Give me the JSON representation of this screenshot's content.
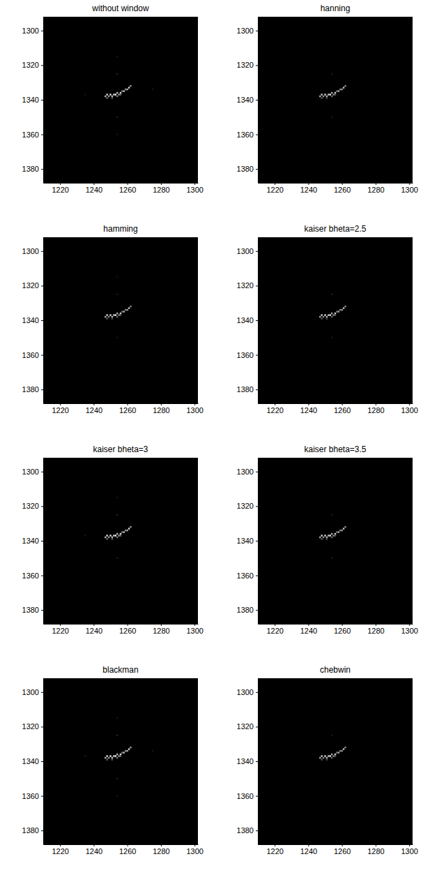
{
  "chart_data": [
    {
      "type": "image",
      "title": "without window",
      "xlim": [
        1210,
        1302
      ],
      "ylim": [
        1388,
        1292
      ],
      "xticks": [
        1220,
        1240,
        1260,
        1280,
        1300
      ],
      "yticks": [
        1300,
        1320,
        1340,
        1360,
        1380
      ],
      "cells": [
        [
          1247,
          1338,
          0.7
        ],
        [
          1248,
          1337,
          0.85
        ],
        [
          1249,
          1338,
          0.6
        ],
        [
          1250,
          1337,
          0.9
        ],
        [
          1251,
          1338,
          0.75
        ],
        [
          1252,
          1337,
          0.8
        ],
        [
          1253,
          1337,
          0.95
        ],
        [
          1254,
          1336,
          0.7
        ],
        [
          1255,
          1337,
          0.6
        ],
        [
          1256,
          1336,
          0.85
        ],
        [
          1257,
          1335,
          0.5
        ],
        [
          1258,
          1335,
          0.7
        ],
        [
          1259,
          1334,
          0.55
        ],
        [
          1260,
          1334,
          0.65
        ],
        [
          1261,
          1333,
          0.8
        ],
        [
          1262,
          1332,
          0.6
        ],
        [
          1248,
          1339,
          0.4
        ],
        [
          1251,
          1339,
          0.35
        ],
        [
          1254,
          1338,
          0.45
        ],
        [
          1256,
          1337,
          0.4
        ],
        [
          1254,
          1325,
          0.12
        ],
        [
          1254,
          1315,
          0.08
        ],
        [
          1254,
          1350,
          0.1
        ],
        [
          1254,
          1360,
          0.07
        ],
        [
          1235,
          1337,
          0.08
        ],
        [
          1275,
          1334,
          0.08
        ]
      ]
    },
    {
      "type": "image",
      "title": "hanning",
      "xlim": [
        1210,
        1302
      ],
      "ylim": [
        1388,
        1292
      ],
      "xticks": [
        1220,
        1240,
        1260,
        1280,
        1300
      ],
      "yticks": [
        1300,
        1320,
        1340,
        1360,
        1380
      ],
      "cells": [
        [
          1247,
          1338,
          0.65
        ],
        [
          1248,
          1337,
          0.8
        ],
        [
          1249,
          1338,
          0.55
        ],
        [
          1250,
          1337,
          0.85
        ],
        [
          1251,
          1338,
          0.7
        ],
        [
          1252,
          1337,
          0.75
        ],
        [
          1253,
          1337,
          0.9
        ],
        [
          1254,
          1336,
          0.65
        ],
        [
          1255,
          1337,
          0.55
        ],
        [
          1256,
          1336,
          0.8
        ],
        [
          1257,
          1335,
          0.45
        ],
        [
          1258,
          1335,
          0.65
        ],
        [
          1259,
          1334,
          0.5
        ],
        [
          1260,
          1334,
          0.6
        ],
        [
          1261,
          1333,
          0.75
        ],
        [
          1262,
          1332,
          0.55
        ],
        [
          1248,
          1339,
          0.35
        ],
        [
          1251,
          1339,
          0.3
        ],
        [
          1254,
          1338,
          0.4
        ],
        [
          1256,
          1337,
          0.35
        ],
        [
          1254,
          1325,
          0.08
        ],
        [
          1254,
          1350,
          0.07
        ]
      ]
    },
    {
      "type": "image",
      "title": "hamming",
      "xlim": [
        1210,
        1302
      ],
      "ylim": [
        1388,
        1292
      ],
      "xticks": [
        1220,
        1240,
        1260,
        1280,
        1300
      ],
      "yticks": [
        1300,
        1320,
        1340,
        1360,
        1380
      ],
      "cells": [
        [
          1247,
          1338,
          0.65
        ],
        [
          1248,
          1337,
          0.8
        ],
        [
          1249,
          1338,
          0.55
        ],
        [
          1250,
          1337,
          0.85
        ],
        [
          1251,
          1338,
          0.7
        ],
        [
          1252,
          1337,
          0.75
        ],
        [
          1253,
          1337,
          0.9
        ],
        [
          1254,
          1336,
          0.65
        ],
        [
          1255,
          1337,
          0.55
        ],
        [
          1256,
          1336,
          0.8
        ],
        [
          1257,
          1335,
          0.45
        ],
        [
          1258,
          1335,
          0.65
        ],
        [
          1259,
          1334,
          0.5
        ],
        [
          1260,
          1334,
          0.6
        ],
        [
          1261,
          1333,
          0.75
        ],
        [
          1262,
          1332,
          0.55
        ],
        [
          1248,
          1339,
          0.35
        ],
        [
          1251,
          1339,
          0.3
        ],
        [
          1254,
          1338,
          0.4
        ],
        [
          1256,
          1337,
          0.35
        ],
        [
          1254,
          1325,
          0.1
        ],
        [
          1254,
          1350,
          0.08
        ],
        [
          1254,
          1315,
          0.06
        ]
      ]
    },
    {
      "type": "image",
      "title": "kaiser bheta=2.5",
      "xlim": [
        1210,
        1302
      ],
      "ylim": [
        1388,
        1292
      ],
      "xticks": [
        1220,
        1240,
        1260,
        1280,
        1300
      ],
      "yticks": [
        1300,
        1320,
        1340,
        1360,
        1380
      ],
      "cells": [
        [
          1247,
          1338,
          0.65
        ],
        [
          1248,
          1337,
          0.8
        ],
        [
          1249,
          1338,
          0.55
        ],
        [
          1250,
          1337,
          0.85
        ],
        [
          1251,
          1338,
          0.7
        ],
        [
          1252,
          1337,
          0.75
        ],
        [
          1253,
          1337,
          0.9
        ],
        [
          1254,
          1336,
          0.65
        ],
        [
          1255,
          1337,
          0.55
        ],
        [
          1256,
          1336,
          0.8
        ],
        [
          1257,
          1335,
          0.45
        ],
        [
          1258,
          1335,
          0.65
        ],
        [
          1259,
          1334,
          0.5
        ],
        [
          1260,
          1334,
          0.6
        ],
        [
          1261,
          1333,
          0.75
        ],
        [
          1262,
          1332,
          0.55
        ],
        [
          1248,
          1339,
          0.35
        ],
        [
          1251,
          1339,
          0.3
        ],
        [
          1254,
          1338,
          0.4
        ],
        [
          1256,
          1337,
          0.35
        ],
        [
          1254,
          1325,
          0.1
        ],
        [
          1254,
          1350,
          0.08
        ]
      ]
    },
    {
      "type": "image",
      "title": "kaiser bheta=3",
      "xlim": [
        1210,
        1302
      ],
      "ylim": [
        1388,
        1292
      ],
      "xticks": [
        1220,
        1240,
        1260,
        1280,
        1300
      ],
      "yticks": [
        1300,
        1320,
        1340,
        1360,
        1380
      ],
      "cells": [
        [
          1247,
          1338,
          0.7
        ],
        [
          1248,
          1337,
          0.85
        ],
        [
          1249,
          1338,
          0.6
        ],
        [
          1250,
          1337,
          0.9
        ],
        [
          1251,
          1338,
          0.75
        ],
        [
          1252,
          1337,
          0.8
        ],
        [
          1253,
          1337,
          0.95
        ],
        [
          1254,
          1336,
          0.7
        ],
        [
          1255,
          1337,
          0.6
        ],
        [
          1256,
          1336,
          0.85
        ],
        [
          1257,
          1335,
          0.5
        ],
        [
          1258,
          1335,
          0.7
        ],
        [
          1259,
          1334,
          0.55
        ],
        [
          1260,
          1334,
          0.65
        ],
        [
          1261,
          1333,
          0.8
        ],
        [
          1262,
          1332,
          0.6
        ],
        [
          1248,
          1339,
          0.4
        ],
        [
          1251,
          1339,
          0.35
        ],
        [
          1254,
          1338,
          0.45
        ],
        [
          1256,
          1337,
          0.4
        ],
        [
          1254,
          1325,
          0.12
        ],
        [
          1254,
          1315,
          0.08
        ],
        [
          1254,
          1350,
          0.1
        ],
        [
          1235,
          1337,
          0.08
        ]
      ]
    },
    {
      "type": "image",
      "title": "kaiser bheta=3.5",
      "xlim": [
        1210,
        1302
      ],
      "ylim": [
        1388,
        1292
      ],
      "xticks": [
        1220,
        1240,
        1260,
        1280,
        1300
      ],
      "yticks": [
        1300,
        1320,
        1340,
        1360,
        1380
      ],
      "cells": [
        [
          1247,
          1338,
          0.65
        ],
        [
          1248,
          1337,
          0.8
        ],
        [
          1249,
          1338,
          0.55
        ],
        [
          1250,
          1337,
          0.85
        ],
        [
          1251,
          1338,
          0.7
        ],
        [
          1252,
          1337,
          0.75
        ],
        [
          1253,
          1337,
          0.9
        ],
        [
          1254,
          1336,
          0.65
        ],
        [
          1255,
          1337,
          0.55
        ],
        [
          1256,
          1336,
          0.8
        ],
        [
          1257,
          1335,
          0.45
        ],
        [
          1258,
          1335,
          0.65
        ],
        [
          1259,
          1334,
          0.5
        ],
        [
          1260,
          1334,
          0.6
        ],
        [
          1261,
          1333,
          0.75
        ],
        [
          1262,
          1332,
          0.55
        ],
        [
          1248,
          1339,
          0.35
        ],
        [
          1251,
          1339,
          0.3
        ],
        [
          1254,
          1338,
          0.4
        ],
        [
          1256,
          1337,
          0.35
        ],
        [
          1254,
          1325,
          0.1
        ],
        [
          1254,
          1350,
          0.08
        ]
      ]
    },
    {
      "type": "image",
      "title": "blackman",
      "xlim": [
        1210,
        1302
      ],
      "ylim": [
        1388,
        1292
      ],
      "xticks": [
        1220,
        1240,
        1260,
        1280,
        1300
      ],
      "yticks": [
        1300,
        1320,
        1340,
        1360,
        1380
      ],
      "cells": [
        [
          1247,
          1338,
          0.7
        ],
        [
          1248,
          1337,
          0.85
        ],
        [
          1249,
          1338,
          0.6
        ],
        [
          1250,
          1337,
          0.9
        ],
        [
          1251,
          1338,
          0.75
        ],
        [
          1252,
          1337,
          0.8
        ],
        [
          1253,
          1337,
          0.95
        ],
        [
          1254,
          1336,
          0.7
        ],
        [
          1255,
          1337,
          0.6
        ],
        [
          1256,
          1336,
          0.85
        ],
        [
          1257,
          1335,
          0.5
        ],
        [
          1258,
          1335,
          0.7
        ],
        [
          1259,
          1334,
          0.55
        ],
        [
          1260,
          1334,
          0.65
        ],
        [
          1261,
          1333,
          0.8
        ],
        [
          1262,
          1332,
          0.6
        ],
        [
          1248,
          1339,
          0.4
        ],
        [
          1251,
          1339,
          0.35
        ],
        [
          1254,
          1338,
          0.45
        ],
        [
          1256,
          1337,
          0.4
        ],
        [
          1254,
          1325,
          0.12
        ],
        [
          1254,
          1315,
          0.09
        ],
        [
          1254,
          1350,
          0.1
        ],
        [
          1254,
          1360,
          0.07
        ],
        [
          1235,
          1337,
          0.09
        ],
        [
          1275,
          1334,
          0.08
        ]
      ]
    },
    {
      "type": "image",
      "title": "chebwin",
      "xlim": [
        1210,
        1302
      ],
      "ylim": [
        1388,
        1292
      ],
      "xticks": [
        1220,
        1240,
        1260,
        1280,
        1300
      ],
      "yticks": [
        1300,
        1320,
        1340,
        1360,
        1380
      ],
      "cells": [
        [
          1247,
          1338,
          0.65
        ],
        [
          1248,
          1337,
          0.8
        ],
        [
          1249,
          1338,
          0.55
        ],
        [
          1250,
          1337,
          0.85
        ],
        [
          1251,
          1338,
          0.7
        ],
        [
          1252,
          1337,
          0.75
        ],
        [
          1253,
          1337,
          0.9
        ],
        [
          1254,
          1336,
          0.65
        ],
        [
          1255,
          1337,
          0.55
        ],
        [
          1256,
          1336,
          0.8
        ],
        [
          1257,
          1335,
          0.45
        ],
        [
          1258,
          1335,
          0.65
        ],
        [
          1259,
          1334,
          0.5
        ],
        [
          1260,
          1334,
          0.6
        ],
        [
          1261,
          1333,
          0.75
        ],
        [
          1262,
          1332,
          0.55
        ],
        [
          1248,
          1339,
          0.35
        ],
        [
          1251,
          1339,
          0.3
        ],
        [
          1254,
          1338,
          0.4
        ],
        [
          1256,
          1337,
          0.35
        ],
        [
          1254,
          1325,
          0.08
        ]
      ]
    }
  ]
}
